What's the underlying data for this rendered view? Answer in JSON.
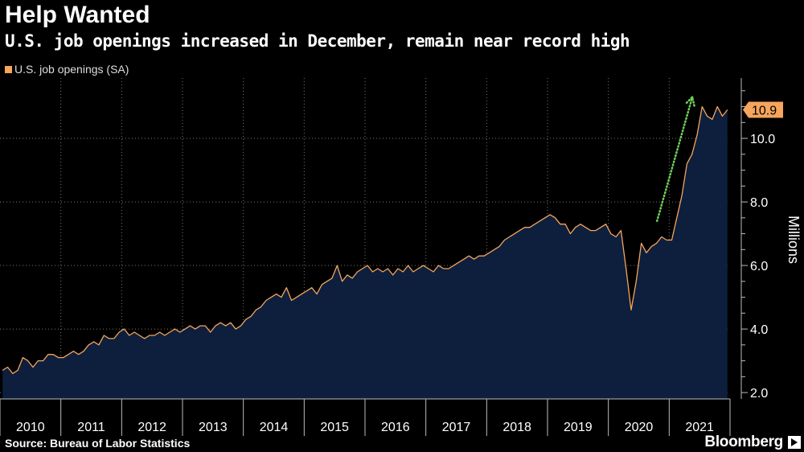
{
  "header": {
    "title": "Help Wanted",
    "subtitle": "U.S. job openings increased in December, remain near record high"
  },
  "legend": {
    "label": "U.S. job openings (SA)",
    "color": "#f5a55c"
  },
  "footer": {
    "source": "Source: Bureau of Labor Statistics",
    "brand": "Bloomberg"
  },
  "colors": {
    "background": "#000000",
    "area": "#0d1f3c",
    "line": "#f5a55c",
    "arrow": "#6ecf5a",
    "grid": "#777777"
  },
  "chart_data": {
    "type": "area",
    "title": "Help Wanted",
    "subtitle": "U.S. job openings increased in December, remain near record high",
    "ylabel": "Millions",
    "xlabel": "",
    "ylim": [
      1.8,
      11.9
    ],
    "yticks": [
      2.0,
      4.0,
      6.0,
      8.0,
      10.0
    ],
    "ytick_labels": [
      "2.0",
      "4.0",
      "6.0",
      "8.0",
      "10.0"
    ],
    "xlim": [
      2010.0,
      2022.0
    ],
    "x_tick_labels": [
      "2010",
      "2011",
      "2012",
      "2013",
      "2014",
      "2015",
      "2016",
      "2017",
      "2018",
      "2019",
      "2020",
      "2021"
    ],
    "last_value_label": "10.9",
    "annotation": "upward dotted arrow",
    "series": [
      {
        "name": "U.S. job openings (SA)",
        "values": [
          2.7,
          2.8,
          2.6,
          2.7,
          3.1,
          3.0,
          2.8,
          3.0,
          3.0,
          3.2,
          3.2,
          3.1,
          3.1,
          3.2,
          3.3,
          3.2,
          3.3,
          3.5,
          3.6,
          3.5,
          3.8,
          3.7,
          3.7,
          3.9,
          4.0,
          3.8,
          3.9,
          3.8,
          3.7,
          3.8,
          3.8,
          3.9,
          3.8,
          3.9,
          4.0,
          3.9,
          4.0,
          4.1,
          4.0,
          4.1,
          4.1,
          3.9,
          4.1,
          4.2,
          4.1,
          4.2,
          4.0,
          4.1,
          4.3,
          4.4,
          4.6,
          4.7,
          4.9,
          5.0,
          5.1,
          5.0,
          5.3,
          4.9,
          5.0,
          5.1,
          5.2,
          5.3,
          5.1,
          5.4,
          5.5,
          5.6,
          6.0,
          5.5,
          5.7,
          5.6,
          5.8,
          5.9,
          6.0,
          5.8,
          5.9,
          5.8,
          5.9,
          5.7,
          5.9,
          5.8,
          6.0,
          5.8,
          5.9,
          6.0,
          5.9,
          5.8,
          6.0,
          5.9,
          5.9,
          6.0,
          6.1,
          6.2,
          6.3,
          6.2,
          6.3,
          6.3,
          6.4,
          6.5,
          6.6,
          6.8,
          6.9,
          7.0,
          7.1,
          7.2,
          7.2,
          7.3,
          7.4,
          7.5,
          7.6,
          7.5,
          7.3,
          7.3,
          7.0,
          7.2,
          7.3,
          7.2,
          7.1,
          7.1,
          7.2,
          7.3,
          7.0,
          6.9,
          7.1,
          5.9,
          4.6,
          5.5,
          6.7,
          6.4,
          6.6,
          6.7,
          6.9,
          6.8,
          6.8,
          7.5,
          8.2,
          9.2,
          9.5,
          10.1,
          11.0,
          10.7,
          10.6,
          11.0,
          10.7,
          10.9
        ]
      }
    ]
  }
}
